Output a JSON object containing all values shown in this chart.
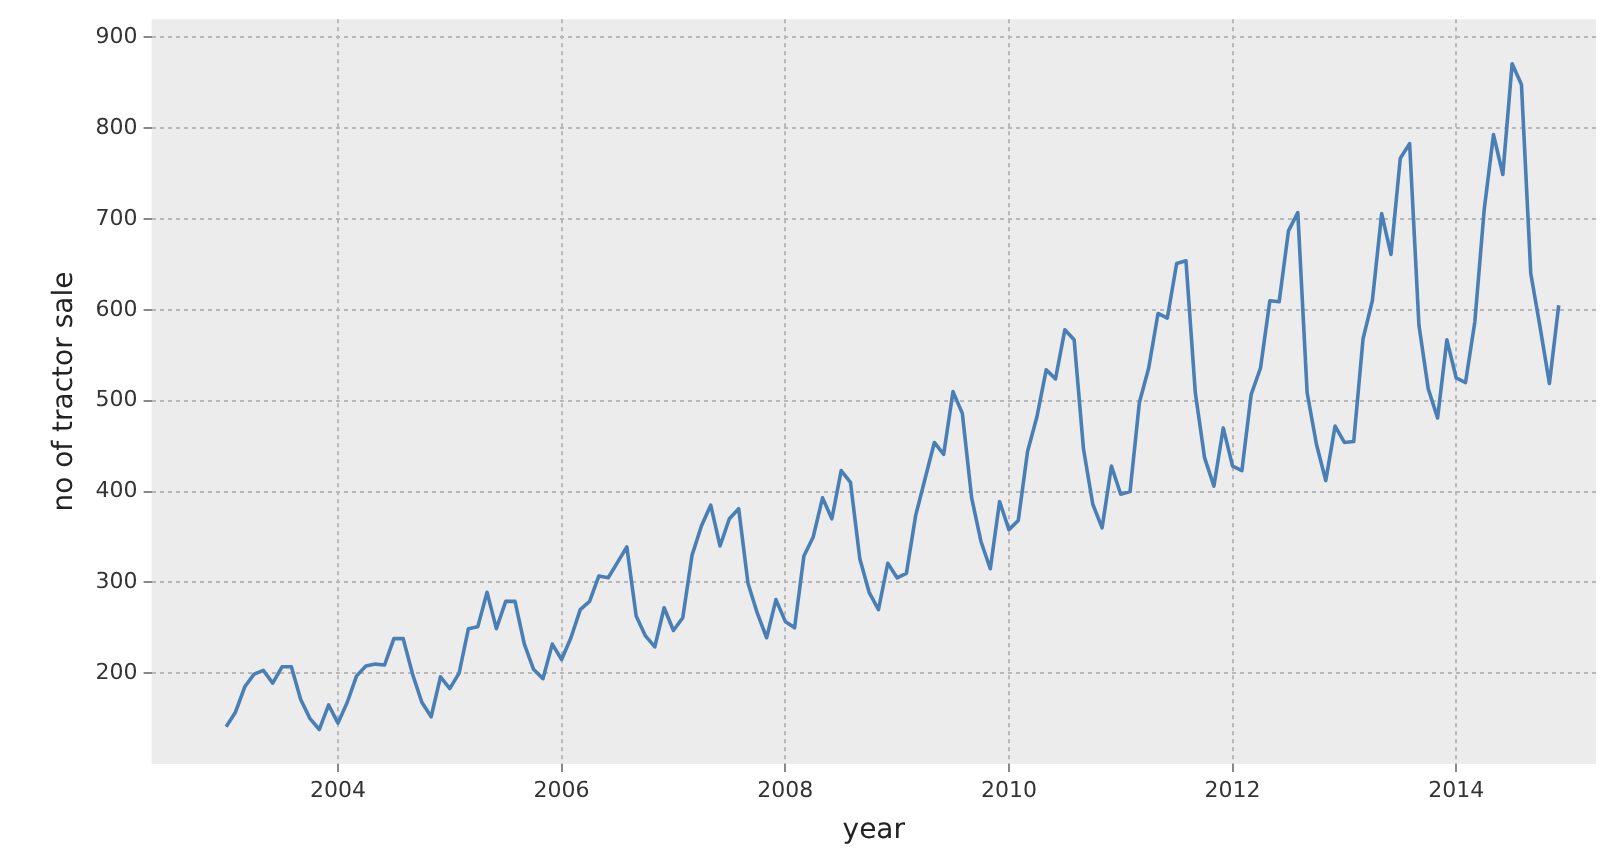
{
  "chart_data": {
    "type": "line",
    "xlabel": "year",
    "ylabel": "no of tractor sale",
    "x": [
      "2003-01",
      "2003-02",
      "2003-03",
      "2003-04",
      "2003-05",
      "2003-06",
      "2003-07",
      "2003-08",
      "2003-09",
      "2003-10",
      "2003-11",
      "2003-12",
      "2004-01",
      "2004-02",
      "2004-03",
      "2004-04",
      "2004-05",
      "2004-06",
      "2004-07",
      "2004-08",
      "2004-09",
      "2004-10",
      "2004-11",
      "2004-12",
      "2005-01",
      "2005-02",
      "2005-03",
      "2005-04",
      "2005-05",
      "2005-06",
      "2005-07",
      "2005-08",
      "2005-09",
      "2005-10",
      "2005-11",
      "2005-12",
      "2006-01",
      "2006-02",
      "2006-03",
      "2006-04",
      "2006-05",
      "2006-06",
      "2006-07",
      "2006-08",
      "2006-09",
      "2006-10",
      "2006-11",
      "2006-12",
      "2007-01",
      "2007-02",
      "2007-03",
      "2007-04",
      "2007-05",
      "2007-06",
      "2007-07",
      "2007-08",
      "2007-09",
      "2007-10",
      "2007-11",
      "2007-12",
      "2008-01",
      "2008-02",
      "2008-03",
      "2008-04",
      "2008-05",
      "2008-06",
      "2008-07",
      "2008-08",
      "2008-09",
      "2008-10",
      "2008-11",
      "2008-12",
      "2009-01",
      "2009-02",
      "2009-03",
      "2009-04",
      "2009-05",
      "2009-06",
      "2009-07",
      "2009-08",
      "2009-09",
      "2009-10",
      "2009-11",
      "2009-12",
      "2010-01",
      "2010-02",
      "2010-03",
      "2010-04",
      "2010-05",
      "2010-06",
      "2010-07",
      "2010-08",
      "2010-09",
      "2010-10",
      "2010-11",
      "2010-12",
      "2011-01",
      "2011-02",
      "2011-03",
      "2011-04",
      "2011-05",
      "2011-06",
      "2011-07",
      "2011-08",
      "2011-09",
      "2011-10",
      "2011-11",
      "2011-12",
      "2012-01",
      "2012-02",
      "2012-03",
      "2012-04",
      "2012-05",
      "2012-06",
      "2012-07",
      "2012-08",
      "2012-09",
      "2012-10",
      "2012-11",
      "2012-12",
      "2013-01",
      "2013-02",
      "2013-03",
      "2013-04",
      "2013-05",
      "2013-06",
      "2013-07",
      "2013-08",
      "2013-09",
      "2013-10",
      "2013-11",
      "2013-12",
      "2014-01",
      "2014-02",
      "2014-03",
      "2014-04",
      "2014-05",
      "2014-06",
      "2014-07",
      "2014-08",
      "2014-09",
      "2014-10",
      "2014-11",
      "2014-12"
    ],
    "series": [
      {
        "color": "#4a7fb5",
        "values": [
          141,
          157,
          185,
          199,
          203,
          189,
          207,
          207,
          171,
          150,
          138,
          165,
          145,
          168,
          197,
          208,
          210,
          209,
          238,
          238,
          199,
          168,
          152,
          196,
          183,
          200,
          249,
          251,
          289,
          249,
          279,
          279,
          232,
          204,
          194,
          232,
          215,
          239,
          270,
          279,
          307,
          305,
          322,
          339,
          263,
          241,
          229,
          272,
          247,
          261,
          330,
          362,
          385,
          340,
          370,
          381,
          299,
          266,
          239,
          281,
          257,
          250,
          329,
          350,
          393,
          370,
          423,
          410,
          326,
          289,
          270,
          321,
          305,
          310,
          374,
          414,
          454,
          441,
          510,
          486,
          393,
          345,
          315,
          389,
          358,
          368,
          444,
          482,
          534,
          524,
          578,
          567,
          447,
          386,
          360,
          428,
          397,
          400,
          498,
          536,
          596,
          591,
          651,
          654,
          509,
          437,
          406,
          470,
          428,
          423,
          507,
          536,
          610,
          609,
          687,
          707,
          509,
          452,
          412,
          472,
          454,
          455,
          568,
          610,
          706,
          661,
          767,
          783,
          583,
          513,
          481,
          567,
          525,
          520,
          587,
          710,
          793,
          749,
          871,
          848,
          640,
          581,
          519,
          605
        ]
      }
    ],
    "xlim": [
      "2002-05",
      "2015-04"
    ],
    "xticks": [
      "2004",
      "2006",
      "2008",
      "2010",
      "2012",
      "2014"
    ],
    "ylim": [
      100,
      920
    ],
    "yticks": [
      200,
      300,
      400,
      500,
      600,
      700,
      800,
      900
    ],
    "grid": true,
    "legend": false,
    "marker": "none",
    "line_style": "solid"
  }
}
